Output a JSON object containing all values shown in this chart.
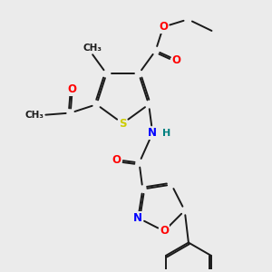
{
  "background_color": "#ebebeb",
  "atom_colors": {
    "S": "#cccc00",
    "O": "#ff0000",
    "N": "#0000ff",
    "H": "#008080",
    "C": "#1a1a1a"
  },
  "bond_lw": 1.4,
  "dbo": 0.045,
  "figsize": [
    3.0,
    3.0
  ],
  "dpi": 100
}
